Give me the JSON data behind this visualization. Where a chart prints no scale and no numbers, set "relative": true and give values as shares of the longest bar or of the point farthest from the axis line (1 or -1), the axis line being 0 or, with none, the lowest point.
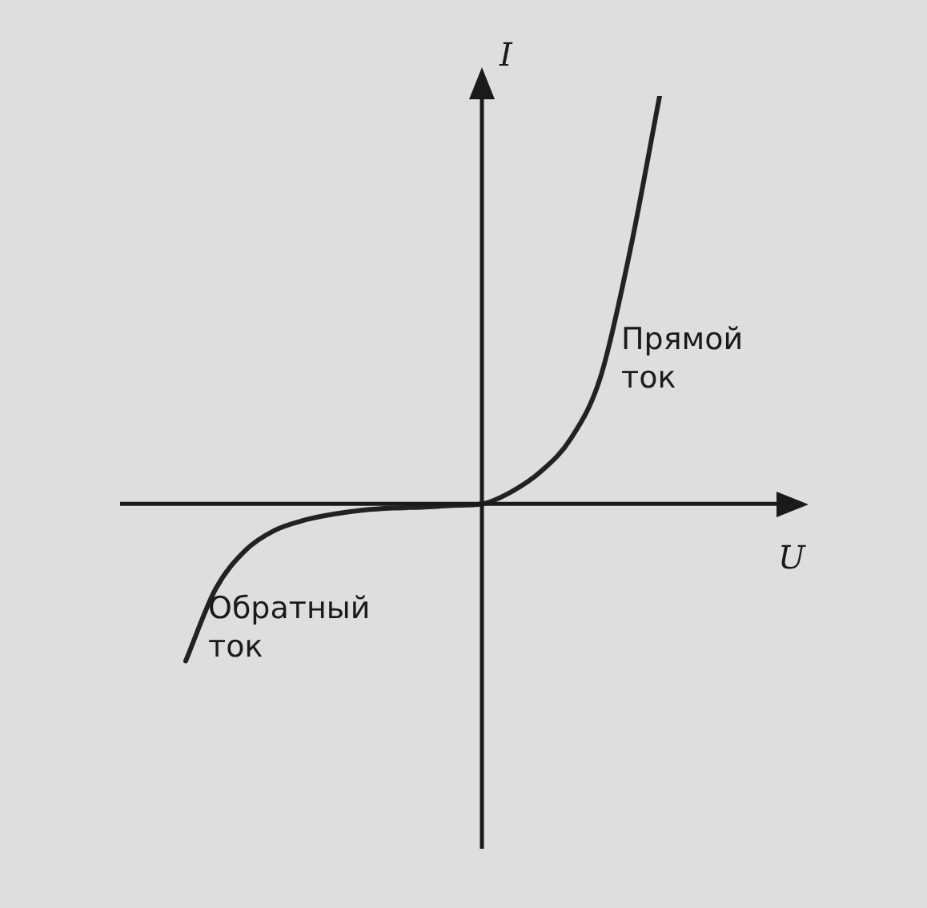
{
  "chart_data": {
    "type": "line",
    "relative": true,
    "xlabel": "U",
    "ylabel": "I",
    "categories": [
      null,
      null,
      null,
      null,
      null,
      null,
      null,
      null,
      null,
      null,
      null,
      null,
      null,
      null,
      null,
      null,
      null
    ],
    "series": [
      {
        "color": "#222222",
        "values": [
          -0.385,
          -0.21,
          -0.115,
          -0.065,
          -0.04,
          -0.025,
          -0.015,
          -0.01,
          -0.008,
          -0.004,
          0,
          0.03,
          0.08,
          0.16,
          0.31,
          0.62,
          1
        ]
      }
    ],
    "annotations": [
      "Прямой\nток",
      "Обратный\nток"
    ],
    "grid": false,
    "legend": false,
    "tick_labels": false,
    "marker": "none",
    "line_style": "solid"
  }
}
